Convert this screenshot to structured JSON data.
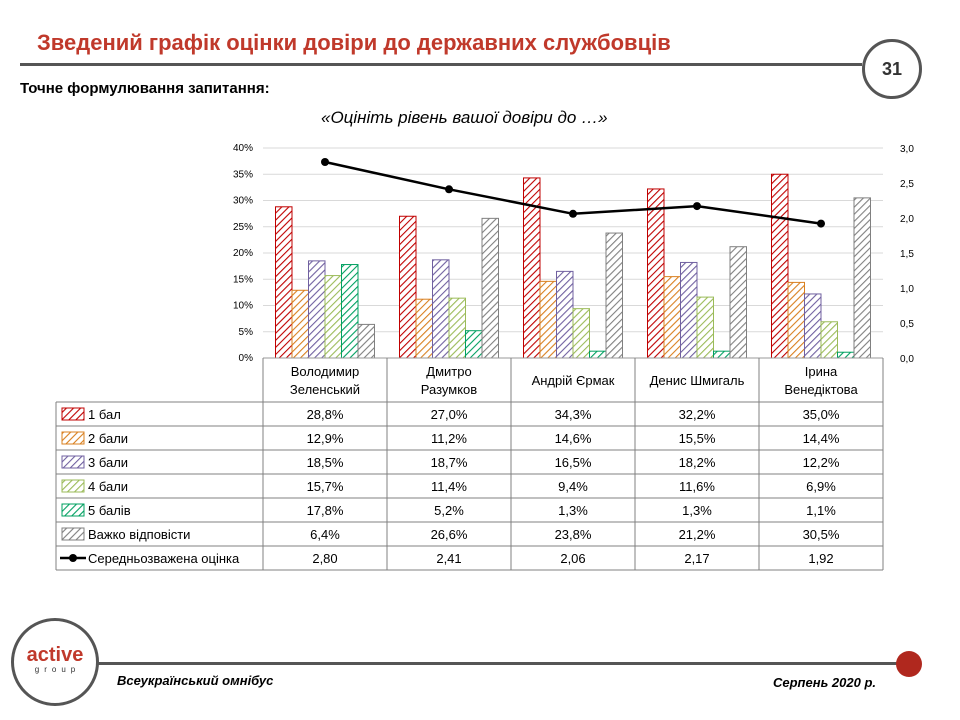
{
  "header": {
    "title": "Зведений графік оцінки довіри до державних службовців",
    "page_number": "31",
    "question_label": "Точне формулювання запитання:",
    "question_text": "«Оцініть рівень вашої довіри до …»"
  },
  "footer": {
    "logo_main": "active",
    "logo_sub": "group",
    "survey_name": "Всеукраїнський омнібус",
    "date": "Серпень 2020 р."
  },
  "chart_data": {
    "type": "bar",
    "categories": [
      [
        "Володимир",
        "Зеленський"
      ],
      [
        "Дмитро",
        "Разумков"
      ],
      [
        "Андрій Єрмак"
      ],
      [
        "Денис Шмигаль"
      ],
      [
        "Ірина",
        "Венедіктова"
      ]
    ],
    "y_ticks": [
      "0%",
      "5%",
      "10%",
      "15%",
      "20%",
      "25%",
      "30%",
      "35%",
      "40%"
    ],
    "y2_ticks": [
      "0,0",
      "0,5",
      "1,0",
      "1,5",
      "2,0",
      "2,5",
      "3,0"
    ],
    "ylim": [
      0,
      40
    ],
    "y2lim": [
      0,
      3
    ],
    "series": [
      {
        "name": "1 бал",
        "values": [
          28.8,
          27.0,
          34.3,
          32.2,
          35.0
        ],
        "labels": [
          "28,8%",
          "27,0%",
          "34,3%",
          "32,2%",
          "35,0%"
        ],
        "color": "#c00000"
      },
      {
        "name": "2 бали",
        "values": [
          12.9,
          11.2,
          14.6,
          15.5,
          14.4
        ],
        "labels": [
          "12,9%",
          "11,2%",
          "14,6%",
          "15,5%",
          "14,4%"
        ],
        "color": "#d98020"
      },
      {
        "name": "3 бали",
        "values": [
          18.5,
          18.7,
          16.5,
          18.2,
          12.2
        ],
        "labels": [
          "18,5%",
          "18,7%",
          "16,5%",
          "18,2%",
          "12,2%"
        ],
        "color": "#7060a0"
      },
      {
        "name": "4 бали",
        "values": [
          15.7,
          11.4,
          9.4,
          11.6,
          6.9
        ],
        "labels": [
          "15,7%",
          "11,4%",
          "9,4%",
          "11,6%",
          "6,9%"
        ],
        "color": "#9bbb59"
      },
      {
        "name": "5 балів",
        "values": [
          17.8,
          5.2,
          1.3,
          1.3,
          1.1
        ],
        "labels": [
          "17,8%",
          "5,2%",
          "1,3%",
          "1,3%",
          "1,1%"
        ],
        "color": "#00a060"
      },
      {
        "name": "Важко відповісти",
        "values": [
          6.4,
          26.6,
          23.8,
          21.2,
          30.5
        ],
        "labels": [
          "6,4%",
          "26,6%",
          "23,8%",
          "21,2%",
          "30,5%"
        ],
        "color": "#808080"
      }
    ],
    "line_series": {
      "name": "Середньозважена оцінка",
      "values": [
        2.8,
        2.41,
        2.06,
        2.17,
        1.92
      ],
      "labels": [
        "2,80",
        "2,41",
        "2,06",
        "2,17",
        "1,92"
      ],
      "color": "#000000"
    },
    "grid": true,
    "legend": "data table"
  }
}
